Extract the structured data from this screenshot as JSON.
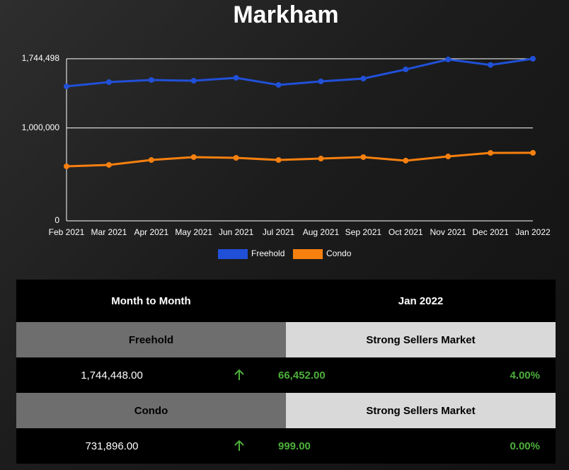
{
  "chart_data": {
    "type": "line",
    "title": "Markham",
    "categories": [
      "Feb 2021",
      "Mar 2021",
      "Apr 2021",
      "May 2021",
      "Jun 2021",
      "Jul 2021",
      "Aug 2021",
      "Sep 2021",
      "Oct 2021",
      "Nov 2021",
      "Dec 2021",
      "Jan 2022"
    ],
    "series": [
      {
        "name": "Freehold",
        "color": "#2150d8",
        "values": [
          1447000,
          1493000,
          1516000,
          1508000,
          1539000,
          1463000,
          1501000,
          1531000,
          1630000,
          1737000,
          1677996,
          1744448
        ]
      },
      {
        "name": "Condo",
        "color": "#f7800f",
        "values": [
          587000,
          602000,
          655000,
          686000,
          678000,
          655000,
          670000,
          686000,
          648000,
          693000,
          730897,
          731896
        ]
      }
    ],
    "ylim": [
      0,
      1744498
    ],
    "yticks": [
      0,
      {
        "value": 1000000,
        "label": "1,000,000"
      },
      {
        "value": 1744498,
        "label": "1,744,498"
      }
    ],
    "grid": true
  },
  "table": {
    "header": [
      "Month to Month",
      "Jan 2022"
    ],
    "rows": [
      {
        "name": "Freehold",
        "status": "Strong Sellers Market",
        "price": "1,744,448.00",
        "change": "66,452.00",
        "percent": "4.00%"
      },
      {
        "name": "Condo",
        "status": "Strong Sellers Market",
        "price": "731,896.00",
        "change": "999.00",
        "percent": "0.00%"
      }
    ]
  }
}
